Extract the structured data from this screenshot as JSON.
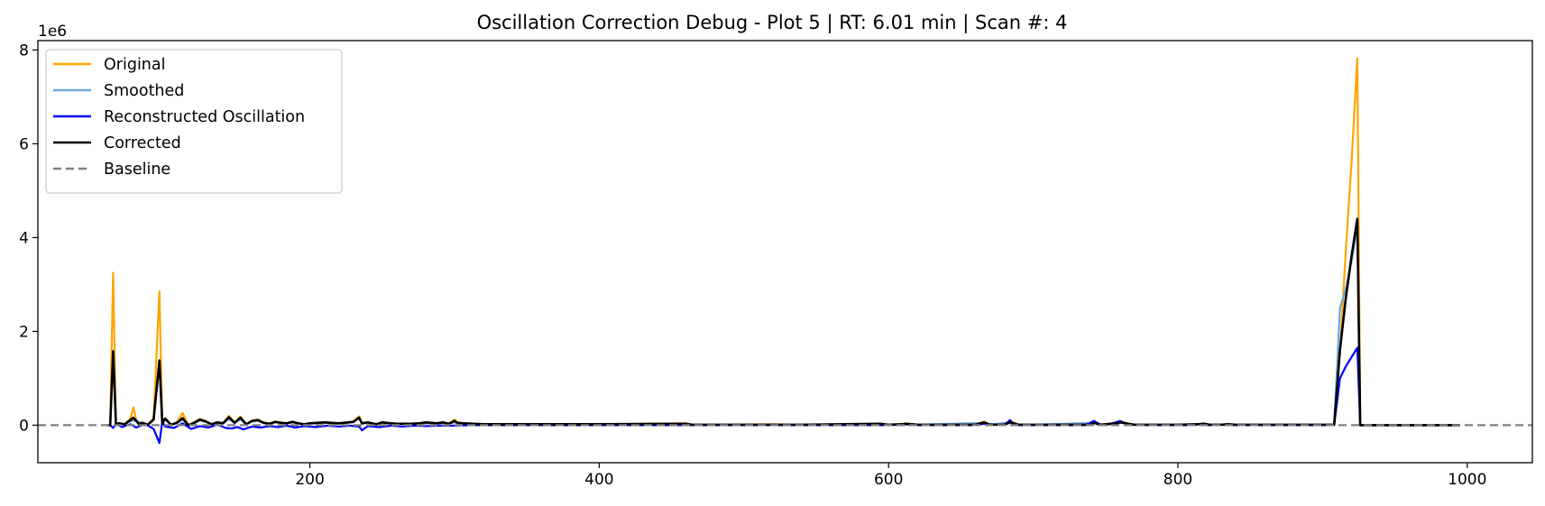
{
  "chart_data": {
    "type": "line",
    "title": "Oscillation Correction Debug - Plot 5 | RT: 6.01 min | Scan #: 4",
    "xlabel": "",
    "ylabel": "",
    "xlim": [
      12,
      1045
    ],
    "ylim": [
      -800000,
      8200000
    ],
    "y_offset_label": "1e6",
    "xticks": [
      200,
      400,
      600,
      800,
      1000
    ],
    "xtick_labels": [
      "200",
      "400",
      "600",
      "800",
      "1000"
    ],
    "yticks": [
      0,
      2000000,
      4000000,
      6000000,
      8000000
    ],
    "ytick_labels": [
      "0",
      "2",
      "4",
      "6",
      "8"
    ],
    "grid": false,
    "legend_position": "upper-left",
    "series": [
      {
        "name": "Original",
        "color": "#ffa500",
        "style": "solid",
        "x": [
          60,
          62,
          64,
          66,
          68,
          72,
          76,
          78,
          80,
          82,
          84,
          88,
          92,
          96,
          98,
          100,
          104,
          108,
          112,
          116,
          120,
          124,
          128,
          132,
          136,
          140,
          144,
          148,
          152,
          156,
          160,
          164,
          168,
          172,
          176,
          180,
          184,
          188,
          192,
          196,
          200,
          210,
          220,
          230,
          234,
          236,
          240,
          246,
          250,
          256,
          260,
          270,
          276,
          280,
          288,
          292,
          296,
          300,
          302,
          306,
          320,
          400,
          460,
          464,
          470,
          520,
          540,
          594,
          600,
          610,
          612,
          620,
          660,
          666,
          670,
          680,
          684,
          690,
          700,
          740,
          742,
          746,
          758,
          760,
          770,
          800,
          815,
          818,
          822,
          830,
          834,
          840,
          880,
          900,
          908,
          912,
          916,
          920,
          924,
          926,
          930,
          960,
          995
        ],
        "y": [
          0,
          0,
          3250000,
          0,
          50000,
          20000,
          150000,
          380000,
          120000,
          30000,
          60000,
          10000,
          150000,
          2850000,
          60000,
          150000,
          10000,
          60000,
          260000,
          0,
          60000,
          130000,
          90000,
          20000,
          60000,
          40000,
          200000,
          60000,
          180000,
          20000,
          100000,
          120000,
          60000,
          30000,
          80000,
          60000,
          40000,
          80000,
          40000,
          20000,
          40000,
          60000,
          40000,
          80000,
          190000,
          40000,
          60000,
          20000,
          60000,
          40000,
          30000,
          30000,
          40000,
          60000,
          40000,
          60000,
          30000,
          120000,
          60000,
          40000,
          20000,
          20000,
          40000,
          10000,
          10000,
          20000,
          10000,
          30000,
          10000,
          30000,
          40000,
          10000,
          10000,
          80000,
          10000,
          10000,
          90000,
          10000,
          10000,
          10000,
          70000,
          10000,
          50000,
          70000,
          10000,
          10000,
          20000,
          40000,
          10000,
          10000,
          30000,
          10000,
          10000,
          10000,
          10000,
          1550000,
          3700000,
          5600000,
          7820000,
          0,
          0,
          0,
          0
        ]
      },
      {
        "name": "Smoothed",
        "color": "#6fa8dc",
        "style": "solid",
        "x": [
          60,
          62,
          64,
          66,
          68,
          72,
          76,
          80,
          84,
          88,
          92,
          96,
          98,
          100,
          104,
          108,
          112,
          116,
          120,
          124,
          128,
          132,
          136,
          140,
          144,
          148,
          152,
          156,
          160,
          164,
          168,
          172,
          176,
          180,
          184,
          188,
          192,
          196,
          200,
          210,
          220,
          230,
          234,
          236,
          240,
          246,
          250,
          256,
          260,
          270,
          276,
          280,
          288,
          292,
          296,
          300,
          302,
          306,
          320,
          400,
          460,
          464,
          470,
          520,
          540,
          600,
          612,
          620,
          666,
          670,
          684,
          690,
          700,
          742,
          746,
          758,
          760,
          770,
          800,
          818,
          822,
          830,
          834,
          840,
          880,
          900,
          908,
          912,
          916,
          920,
          924,
          926,
          930,
          960,
          995
        ],
        "y": [
          0,
          0,
          1500000,
          0,
          40000,
          20000,
          90000,
          100000,
          40000,
          10000,
          120000,
          1300000,
          40000,
          120000,
          10000,
          40000,
          120000,
          0,
          40000,
          100000,
          70000,
          20000,
          50000,
          40000,
          130000,
          50000,
          120000,
          20000,
          80000,
          90000,
          50000,
          30000,
          60000,
          50000,
          30000,
          60000,
          30000,
          20000,
          30000,
          50000,
          30000,
          60000,
          150000,
          30000,
          50000,
          20000,
          50000,
          30000,
          30000,
          30000,
          30000,
          40000,
          30000,
          40000,
          30000,
          60000,
          40000,
          30000,
          20000,
          20000,
          30000,
          10000,
          10000,
          10000,
          10000,
          10000,
          30000,
          10000,
          50000,
          10000,
          60000,
          10000,
          10000,
          50000,
          10000,
          40000,
          60000,
          10000,
          10000,
          30000,
          10000,
          10000,
          20000,
          10000,
          10000,
          10000,
          10000,
          2500000,
          2900000,
          3500000,
          4200000,
          0,
          0,
          0,
          0
        ]
      },
      {
        "name": "Reconstructed Oscillation",
        "color": "#0000ff",
        "style": "solid",
        "x": [
          60,
          62,
          64,
          66,
          70,
          76,
          80,
          86,
          92,
          96,
          98,
          100,
          106,
          112,
          118,
          124,
          130,
          136,
          142,
          146,
          150,
          154,
          160,
          166,
          172,
          178,
          184,
          190,
          196,
          204,
          212,
          220,
          228,
          234,
          236,
          240,
          248,
          256,
          264,
          272,
          280,
          290,
          300,
          310,
          330,
          460,
          520,
          600,
          612,
          620,
          660,
          666,
          680,
          684,
          686,
          690,
          700,
          736,
          742,
          746,
          750,
          756,
          760,
          766,
          780,
          810,
          816,
          820,
          830,
          840,
          880,
          900,
          908,
          912,
          916,
          920,
          924,
          926,
          930,
          960,
          995
        ],
        "y": [
          0,
          0,
          -60000,
          30000,
          -40000,
          20000,
          -50000,
          30000,
          -80000,
          -380000,
          80000,
          -30000,
          -60000,
          40000,
          -80000,
          -20000,
          -50000,
          10000,
          -60000,
          -70000,
          -40000,
          -90000,
          -30000,
          -50000,
          -20000,
          -40000,
          -10000,
          -50000,
          -20000,
          -40000,
          -10000,
          -30000,
          -10000,
          -30000,
          -110000,
          -20000,
          -40000,
          -10000,
          -30000,
          -10000,
          -20000,
          -10000,
          -10000,
          0,
          0,
          0,
          0,
          0,
          20000,
          0,
          0,
          30000,
          0,
          110000,
          20000,
          0,
          0,
          0,
          90000,
          20000,
          10000,
          50000,
          90000,
          10000,
          0,
          0,
          30000,
          0,
          10000,
          0,
          0,
          0,
          0,
          1000000,
          1250000,
          1450000,
          1650000,
          0,
          0,
          0,
          0
        ]
      },
      {
        "name": "Corrected",
        "color": "#000000",
        "style": "solid",
        "x": [
          60,
          62,
          64,
          66,
          68,
          72,
          76,
          78,
          80,
          82,
          84,
          88,
          92,
          96,
          98,
          100,
          104,
          108,
          112,
          116,
          120,
          124,
          128,
          132,
          136,
          140,
          144,
          148,
          152,
          156,
          160,
          164,
          168,
          172,
          176,
          180,
          184,
          188,
          192,
          196,
          200,
          210,
          220,
          230,
          234,
          236,
          240,
          246,
          250,
          256,
          260,
          270,
          276,
          280,
          288,
          292,
          296,
          300,
          302,
          306,
          320,
          400,
          460,
          464,
          470,
          520,
          540,
          594,
          600,
          610,
          612,
          620,
          660,
          666,
          670,
          680,
          684,
          690,
          700,
          740,
          742,
          746,
          758,
          760,
          770,
          800,
          815,
          818,
          822,
          830,
          834,
          840,
          880,
          900,
          908,
          912,
          916,
          920,
          924,
          926,
          930,
          960,
          995
        ],
        "y": [
          0,
          0,
          1580000,
          0,
          40000,
          20000,
          110000,
          160000,
          90000,
          20000,
          50000,
          10000,
          120000,
          1380000,
          40000,
          140000,
          10000,
          50000,
          150000,
          0,
          50000,
          120000,
          80000,
          20000,
          60000,
          40000,
          170000,
          50000,
          160000,
          20000,
          90000,
          110000,
          50000,
          30000,
          70000,
          50000,
          40000,
          70000,
          40000,
          20000,
          40000,
          60000,
          40000,
          70000,
          160000,
          40000,
          60000,
          20000,
          60000,
          40000,
          30000,
          30000,
          40000,
          60000,
          40000,
          60000,
          30000,
          90000,
          50000,
          40000,
          20000,
          20000,
          30000,
          10000,
          10000,
          10000,
          10000,
          30000,
          10000,
          20000,
          30000,
          10000,
          10000,
          60000,
          10000,
          10000,
          60000,
          10000,
          10000,
          10000,
          50000,
          10000,
          40000,
          60000,
          10000,
          10000,
          20000,
          30000,
          10000,
          10000,
          20000,
          10000,
          10000,
          10000,
          10000,
          1600000,
          2700000,
          3600000,
          4400000,
          0,
          0,
          0,
          0
        ]
      },
      {
        "name": "Baseline",
        "color": "#808080",
        "style": "dashed",
        "x": [
          12,
          1045
        ],
        "y": [
          0,
          0
        ]
      }
    ]
  }
}
